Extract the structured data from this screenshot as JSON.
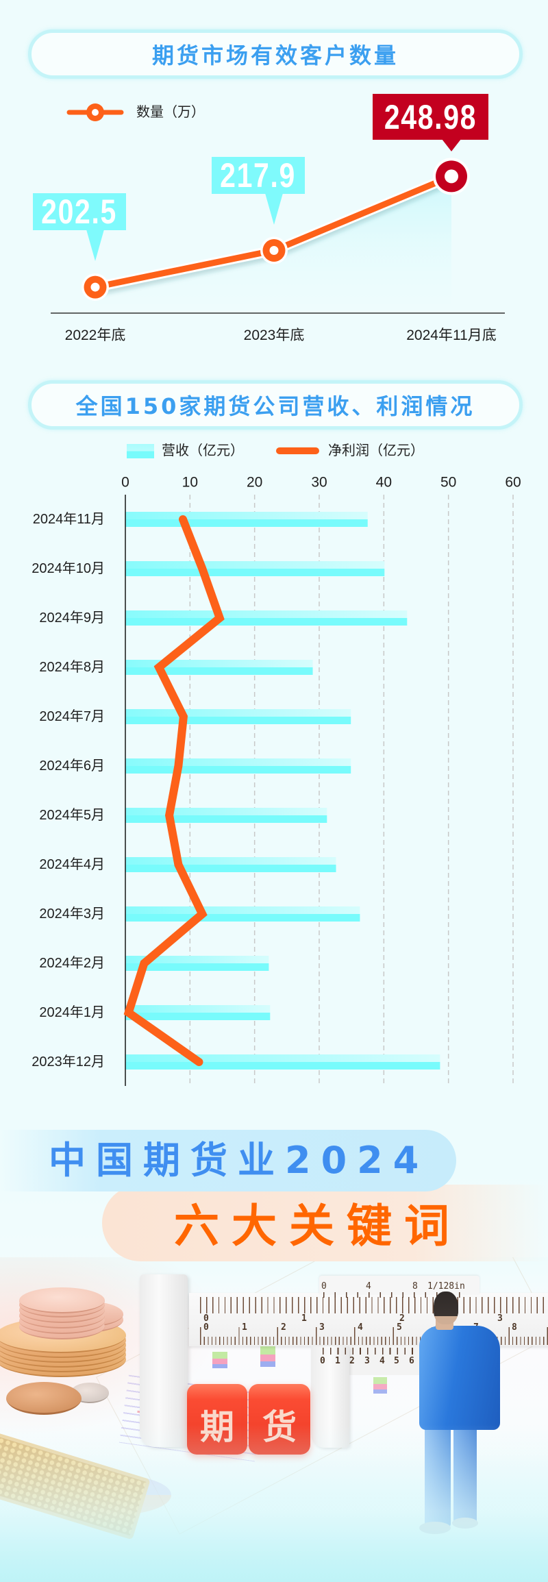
{
  "colors": {
    "page_bg": "#eefcfd",
    "title_text": "#3b9ff0",
    "pill_border": "#c4f4f8",
    "accent_orange": "#fd6119",
    "highlight_red": "#c3001f",
    "label_cyan": "#7ffafc",
    "bar_solid": "#78fbfc",
    "bar_light": "#d6fdfd",
    "banner_blue_text": "#3f8ef0",
    "banner_orange_text": "#ff6600"
  },
  "chart_data": [
    {
      "type": "line",
      "title": "期货市场有效客户数量",
      "categories": [
        "2022年底",
        "2023年底",
        "2024年11月底"
      ],
      "series": [
        {
          "name": "数量（万）",
          "values": [
            202.5,
            217.9,
            248.98
          ]
        }
      ],
      "xlabel": "",
      "ylabel": "",
      "ylim": [
        191.6,
        285.6
      ],
      "grid": false,
      "legend_position": "top-left",
      "highlight_index": 2
    },
    {
      "type": "bar",
      "orientation": "horizontal",
      "title": "全国150家期货公司营收、利润情况",
      "categories": [
        "2024年11月",
        "2024年10月",
        "2024年9月",
        "2024年8月",
        "2024年7月",
        "2024年6月",
        "2024年5月",
        "2024年4月",
        "2024年3月",
        "2024年2月",
        "2024年1月",
        "2023年12月"
      ],
      "series": [
        {
          "name": "营收（亿元）",
          "type": "bar",
          "values": [
            37.5,
            40.1,
            43.6,
            29.0,
            34.9,
            34.9,
            31.2,
            32.6,
            36.3,
            22.2,
            22.4,
            48.7
          ]
        },
        {
          "name": "净利润（亿元）",
          "type": "line",
          "values": [
            8.9,
            11.9,
            14.6,
            5.2,
            9.0,
            8.2,
            6.8,
            8.2,
            11.9,
            2.9,
            0.5,
            11.4
          ]
        }
      ],
      "x_ticks": [
        0,
        10,
        20,
        30,
        40,
        50,
        60
      ],
      "xlim": [
        0,
        60
      ],
      "xlabel": "",
      "ylabel": "",
      "grid": "vertical-dashed",
      "legend_position": "top"
    }
  ],
  "banner": {
    "line1": "中国期货业2024",
    "line2": "六大关键词"
  },
  "photo": {
    "dice_labels": [
      "期",
      "货"
    ],
    "ruler": {
      "inch_labels": [
        "0",
        "1",
        "2",
        "3"
      ],
      "cm_labels": [
        "0",
        "1",
        "2",
        "3",
        "4",
        "5",
        "6",
        "7",
        "8"
      ],
      "vernier_top_labels": [
        "0",
        "4",
        "8",
        "1/128in"
      ],
      "vernier_bottom_labels": [
        "0",
        "1",
        "2",
        "3",
        "4",
        "5",
        "6"
      ]
    }
  }
}
